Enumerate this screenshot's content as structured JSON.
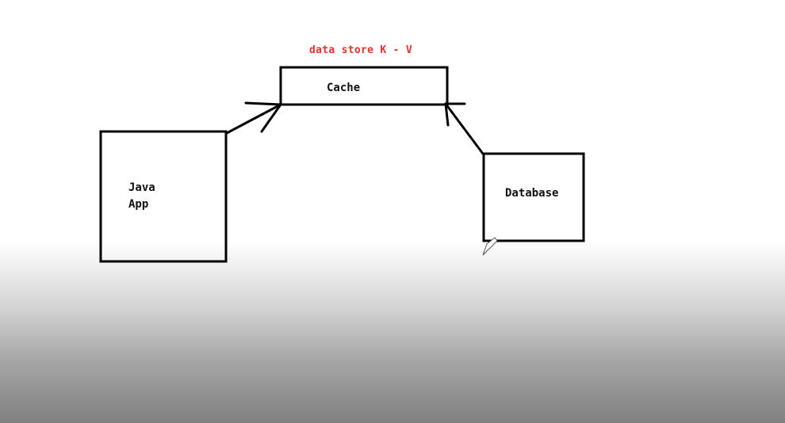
{
  "diagram": {
    "caption": "data store K - V",
    "cache_label": "Cache",
    "java_app_label_line1": "Java",
    "java_app_label_line2": "App",
    "database_label": "Database"
  },
  "colors": {
    "caption": "#e8322e",
    "stroke": "#000000",
    "text": "#111111"
  }
}
